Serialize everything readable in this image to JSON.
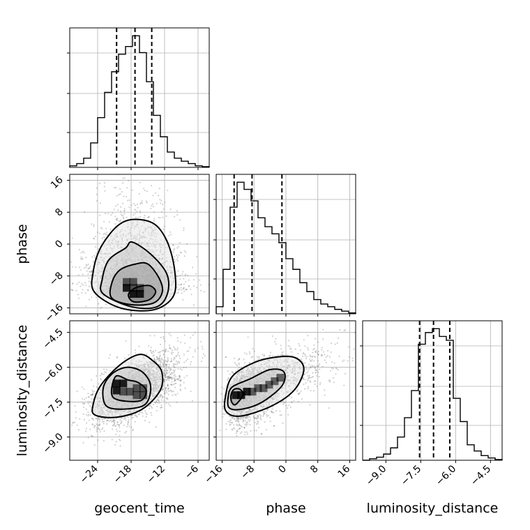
{
  "chart_data": {
    "type": "corner",
    "parameters": [
      "geocent_time",
      "phase",
      "luminosity_distance"
    ],
    "ranges": {
      "geocent_time": [
        -29,
        -4
      ],
      "phase": [
        -17.5,
        17.5
      ],
      "luminosity_distance": [
        -10.0,
        -4.0
      ]
    },
    "ticks": {
      "geocent_time": [
        -24,
        -18,
        -12,
        -6
      ],
      "phase": [
        -16,
        -8,
        0,
        8,
        16
      ],
      "luminosity_distance": [
        -9.0,
        -7.5,
        -6.0,
        -4.5
      ]
    },
    "tick_labels": {
      "geocent_time": [
        "−24",
        "−18",
        "−12",
        "−6"
      ],
      "phase": [
        "−16",
        "−8",
        "0",
        "8",
        "16"
      ],
      "luminosity_distance": [
        "−9.0",
        "−7.5",
        "−6.0",
        "−4.5"
      ]
    },
    "quantiles": {
      "geocent_time": [
        -20.6,
        -17.3,
        -14.3
      ],
      "phase": [
        -13.0,
        -8.5,
        -1.0
      ],
      "luminosity_distance": [
        -7.55,
        -6.95,
        -6.25
      ]
    },
    "histograms": {
      "geocent_time": {
        "edges": [
          -29,
          -27.75,
          -26.5,
          -25.25,
          -24,
          -22.75,
          -21.5,
          -20.25,
          -19,
          -17.75,
          -16.5,
          -15.25,
          -14,
          -12.75,
          -11.5,
          -10.25,
          -9,
          -7.75,
          -6.5,
          -5.25,
          -4
        ],
        "counts": [
          2,
          5,
          12,
          32,
          65,
          98,
          125,
          148,
          158,
          172,
          150,
          112,
          68,
          40,
          20,
          12,
          8,
          5,
          2,
          1
        ]
      },
      "phase": {
        "edges": [
          -17.5,
          -15.75,
          -14,
          -12.25,
          -10.5,
          -8.75,
          -7,
          -5.25,
          -3.5,
          -1.75,
          0,
          1.75,
          3.5,
          5.25,
          7,
          8.75,
          10.5,
          12.25,
          14,
          15.75,
          17.5
        ],
        "counts": [
          8,
          50,
          120,
          148,
          140,
          127,
          108,
          98,
          90,
          80,
          62,
          50,
          35,
          25,
          16,
          11,
          8,
          5,
          3,
          1
        ]
      },
      "luminosity_distance": {
        "edges": [
          -10.0,
          -9.7,
          -9.4,
          -9.1,
          -8.8,
          -8.5,
          -8.2,
          -7.9,
          -7.6,
          -7.3,
          -7.0,
          -6.7,
          -6.4,
          -6.1,
          -5.8,
          -5.5,
          -5.2,
          -4.9,
          -4.6,
          -4.3,
          -4.0
        ],
        "counts": [
          0,
          2,
          4,
          8,
          16,
          30,
          55,
          90,
          150,
          165,
          170,
          160,
          155,
          80,
          50,
          20,
          12,
          6,
          3,
          1
        ]
      }
    },
    "joint_2d": [
      {
        "x": "geocent_time",
        "y": "phase",
        "mean": [
          -17.3,
          -7.5
        ],
        "std": [
          3.8,
          6.5
        ],
        "corr": -0.05,
        "skew": {
          "axis": "y",
          "mode": -12.5
        },
        "density_cells": [
          [
            -17.6,
            -12.5
          ],
          [
            -16.4,
            -12.5
          ],
          [
            -18.8,
            -11.0
          ],
          [
            -17.6,
            -11.0
          ],
          [
            -16.4,
            -11.0
          ],
          [
            -17.6,
            -9.5
          ],
          [
            -18.8,
            -9.5
          ]
        ],
        "contours": [
          [
            [
              -17.5,
              -14.5
            ],
            [
              -14.8,
              -14.0
            ],
            [
              -13.6,
              -12.0
            ],
            [
              -14.5,
              -10.5
            ],
            [
              -16.0,
              -10.5
            ],
            [
              -17.5,
              -11.2
            ],
            [
              -18.5,
              -12.8
            ]
          ],
          [
            [
              -21.5,
              -13.5
            ],
            [
              -18.0,
              -15.2
            ],
            [
              -14.0,
              -14.8
            ],
            [
              -12.4,
              -12.0
            ],
            [
              -13.0,
              -8.5
            ],
            [
              -15.0,
              -5.0
            ],
            [
              -17.2,
              -5.0
            ],
            [
              -20.0,
              -6.5
            ],
            [
              -21.4,
              -9.5
            ]
          ],
          [
            [
              -23.0,
              -12.5
            ],
            [
              -18.0,
              -15.7
            ],
            [
              -13.5,
              -15.8
            ],
            [
              -11.5,
              -12.5
            ],
            [
              -11.6,
              -7.5
            ],
            [
              -14.5,
              -2.5
            ],
            [
              -17.8,
              0.5
            ],
            [
              -19.0,
              -1.0
            ],
            [
              -22.0,
              -4.0
            ],
            [
              -23.2,
              -9.0
            ]
          ],
          [
            [
              -24.6,
              -12.0
            ],
            [
              -20.0,
              -16.0
            ],
            [
              -14.0,
              -16.5
            ],
            [
              -10.4,
              -13.0
            ],
            [
              -10.2,
              -6.5
            ],
            [
              -11.5,
              0.5
            ],
            [
              -13.8,
              5.0
            ],
            [
              -17.5,
              6.2
            ],
            [
              -20.5,
              4.5
            ],
            [
              -23.5,
              -1.0
            ],
            [
              -24.8,
              -7.0
            ]
          ]
        ]
      },
      {
        "x": "geocent_time",
        "y": "luminosity_distance",
        "mean": [
          -17.3,
          -6.95
        ],
        "std": [
          3.8,
          0.75
        ],
        "corr": 0.6,
        "density_cells": [
          [
            -20.6,
            -6.7
          ],
          [
            -19.4,
            -6.7
          ],
          [
            -20.6,
            -7.0
          ],
          [
            -17.0,
            -6.9
          ],
          [
            -15.8,
            -6.9
          ],
          [
            -17.0,
            -7.2
          ],
          [
            -15.8,
            -7.2
          ],
          [
            -18.2,
            -7.05
          ],
          [
            -19.4,
            -7.05
          ]
        ],
        "contours": [
          [
            [
              -21.2,
              -7.3
            ],
            [
              -16.5,
              -7.45
            ],
            [
              -15.3,
              -7.0
            ],
            [
              -16.8,
              -6.65
            ],
            [
              -18.5,
              -6.55
            ],
            [
              -20.8,
              -6.4
            ]
          ],
          [
            [
              -22.5,
              -7.65
            ],
            [
              -19.5,
              -7.8
            ],
            [
              -15.5,
              -7.6
            ],
            [
              -14.5,
              -6.8
            ],
            [
              -16.0,
              -6.2
            ],
            [
              -18.8,
              -6.0
            ],
            [
              -21.5,
              -6.3
            ],
            [
              -23.0,
              -6.9
            ]
          ],
          [
            [
              -24.5,
              -8.05
            ],
            [
              -20.5,
              -8.15
            ],
            [
              -16.0,
              -7.8
            ],
            [
              -12.8,
              -7.0
            ],
            [
              -12.5,
              -6.2
            ],
            [
              -14.2,
              -5.7
            ],
            [
              -16.5,
              -5.45
            ],
            [
              -20.0,
              -5.9
            ],
            [
              -23.5,
              -6.8
            ],
            [
              -24.8,
              -7.6
            ]
          ]
        ]
      },
      {
        "x": "phase",
        "y": "luminosity_distance",
        "mean": [
          -7.0,
          -6.95
        ],
        "std": [
          6.2,
          0.75
        ],
        "corr": 0.55,
        "skew": {
          "axis": "x",
          "mode": -12.8
        },
        "density_cells": [
          [
            -12.6,
            -7.2
          ],
          [
            -11.2,
            -7.2
          ],
          [
            -9.8,
            -7.05
          ],
          [
            -8.4,
            -7.05
          ],
          [
            -7.0,
            -6.9
          ],
          [
            -5.6,
            -6.9
          ],
          [
            -4.2,
            -6.75
          ],
          [
            -2.8,
            -6.6
          ],
          [
            -1.4,
            -6.45
          ]
        ],
        "contours": [
          [
            [
              -13.6,
              -7.5
            ],
            [
              -12.6,
              -7.6
            ],
            [
              -10.8,
              -7.2
            ],
            [
              -11.5,
              -6.95
            ],
            [
              -13.0,
              -6.95
            ],
            [
              -13.8,
              -7.2
            ]
          ],
          [
            [
              -14.2,
              -7.75
            ],
            [
              -11.0,
              -7.8
            ],
            [
              -6.0,
              -7.5
            ],
            [
              -1.0,
              -6.8
            ],
            [
              -0.5,
              -6.2
            ],
            [
              -4.0,
              -6.1
            ],
            [
              -9.0,
              -6.5
            ],
            [
              -13.5,
              -6.85
            ],
            [
              -14.5,
              -7.3
            ]
          ],
          [
            [
              -15.0,
              -7.9
            ],
            [
              -11.5,
              -8.1
            ],
            [
              -4.0,
              -7.7
            ],
            [
              2.0,
              -7.0
            ],
            [
              4.5,
              -6.1
            ],
            [
              2.5,
              -5.6
            ],
            [
              -2.0,
              -5.55
            ],
            [
              -8.0,
              -5.8
            ],
            [
              -13.5,
              -6.4
            ],
            [
              -15.2,
              -7.3
            ]
          ]
        ]
      }
    ]
  }
}
